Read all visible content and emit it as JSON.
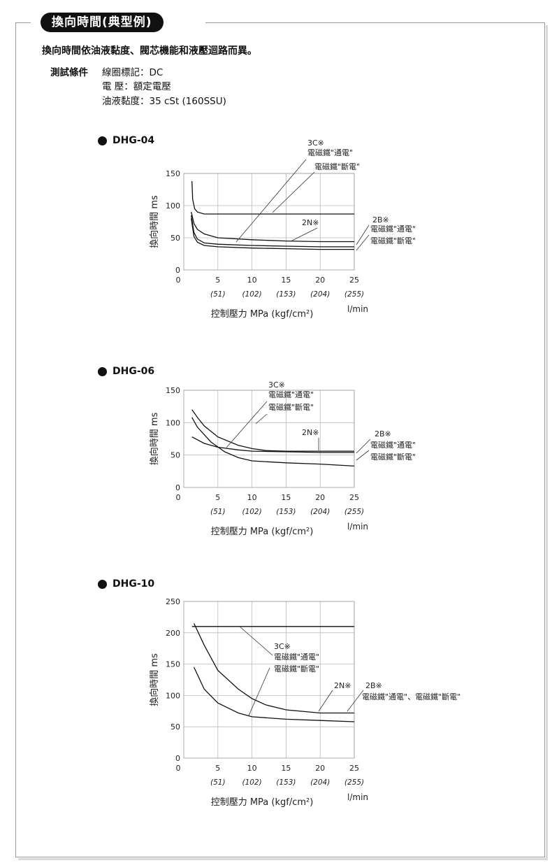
{
  "header": {
    "title": "換向時間(典型例)"
  },
  "intro": "換向時間依油液黏度、閥芯機能和液壓迴路而異。",
  "conditions": {
    "label": "測試條件",
    "coil": "線圈標記：DC",
    "voltage": "電 壓：額定電壓",
    "viscosity": "油液黏度：35 cSt (160SSU)"
  },
  "chart_data": [
    {
      "type": "line",
      "name": "DHG-04",
      "xlabel": "控制壓力 MPa (kgf/cm²)",
      "xunit": "l/min",
      "ylabel": "換向時間 ms",
      "xlim": [
        0,
        25
      ],
      "ylim": [
        0,
        150
      ],
      "x_ticks": [
        5,
        10,
        15,
        20,
        25
      ],
      "x_ticks_kgf": [
        "(51)",
        "(102)",
        "(153)",
        "(204)",
        "(255)"
      ],
      "y_ticks": [
        0,
        50,
        100,
        150
      ],
      "grid": true,
      "series": [
        {
          "x": [
            1.2,
            1.3,
            1.6,
            2,
            3,
            25
          ],
          "y": [
            138,
            110,
            95,
            90,
            87,
            87
          ]
        },
        {
          "x": [
            1.1,
            1.5,
            2,
            3,
            5,
            10,
            15,
            20,
            25
          ],
          "y": [
            90,
            72,
            63,
            56,
            50,
            47,
            45,
            44,
            44
          ]
        },
        {
          "x": [
            1.1,
            1.5,
            2,
            3,
            5,
            10,
            15,
            20,
            25
          ],
          "y": [
            85,
            58,
            48,
            42,
            40,
            38,
            37,
            36,
            36
          ]
        },
        {
          "x": [
            1.1,
            1.5,
            2,
            3,
            5,
            10,
            15,
            20,
            25
          ],
          "y": [
            80,
            52,
            43,
            38,
            36,
            34,
            33,
            32,
            32
          ]
        }
      ],
      "annotations": [
        "3C※",
        "電磁鐵\"通電\"",
        "電磁鐵\"斷電\"",
        "2N※",
        "2B※",
        "電磁鐵\"通電\"",
        "電磁鐵\"斷電\""
      ]
    },
    {
      "type": "line",
      "name": "DHG-06",
      "xlabel": "控制壓力 MPa (kgf/cm²)",
      "xunit": "l/min",
      "ylabel": "換向時間 ms",
      "xlim": [
        0,
        25
      ],
      "ylim": [
        0,
        150
      ],
      "x_ticks": [
        5,
        10,
        15,
        20,
        25
      ],
      "x_ticks_kgf": [
        "(51)",
        "(102)",
        "(153)",
        "(204)",
        "(255)"
      ],
      "y_ticks": [
        0,
        50,
        100,
        150
      ],
      "grid": true,
      "series": [
        {
          "x": [
            1.2,
            2,
            3,
            5,
            8,
            10,
            12,
            15,
            20,
            25
          ],
          "y": [
            120,
            108,
            95,
            78,
            65,
            60,
            57,
            56,
            56,
            56
          ]
        },
        {
          "x": [
            1.2,
            2,
            4,
            6,
            8,
            10,
            15,
            20,
            25
          ],
          "y": [
            108,
            93,
            70,
            55,
            46,
            41,
            38,
            36,
            33
          ]
        },
        {
          "x": [
            1.2,
            3,
            5,
            8,
            10,
            15,
            20,
            25
          ],
          "y": [
            78,
            68,
            62,
            58,
            56,
            55,
            54,
            54
          ]
        }
      ],
      "annotations": [
        "3C※",
        "電磁鐵\"通電\"",
        "電磁鐵\"斷電\"",
        "2N※",
        "2B※",
        "電磁鐵\"通電\"",
        "電磁鐵\"斷電\""
      ]
    },
    {
      "type": "line",
      "name": "DHG-10",
      "xlabel": "控制壓力 MPa (kgf/cm²)",
      "xunit": "l/min",
      "ylabel": "換向時間 ms",
      "xlim": [
        0,
        25
      ],
      "ylim": [
        0,
        250
      ],
      "x_ticks": [
        5,
        10,
        15,
        20,
        25
      ],
      "x_ticks_kgf": [
        "(51)",
        "(102)",
        "(153)",
        "(204)",
        "(255)"
      ],
      "y_ticks": [
        0,
        50,
        100,
        150,
        200,
        250
      ],
      "grid": true,
      "series": [
        {
          "x": [
            1.2,
            25
          ],
          "y": [
            210,
            210
          ]
        },
        {
          "x": [
            1.5,
            3,
            5,
            8,
            10,
            12,
            15,
            20,
            25
          ],
          "y": [
            215,
            180,
            140,
            110,
            95,
            85,
            77,
            72,
            72
          ]
        },
        {
          "x": [
            1.5,
            3,
            5,
            8,
            10,
            15,
            20,
            25
          ],
          "y": [
            145,
            110,
            88,
            72,
            66,
            62,
            60,
            58
          ]
        }
      ],
      "annotations": [
        "3C※",
        "電磁鐵\"通電\"",
        "電磁鐵\"斷電\"",
        "2N※",
        "2B※",
        "電磁鐵\"通電\"、電磁鐵\"斷電\""
      ]
    }
  ]
}
